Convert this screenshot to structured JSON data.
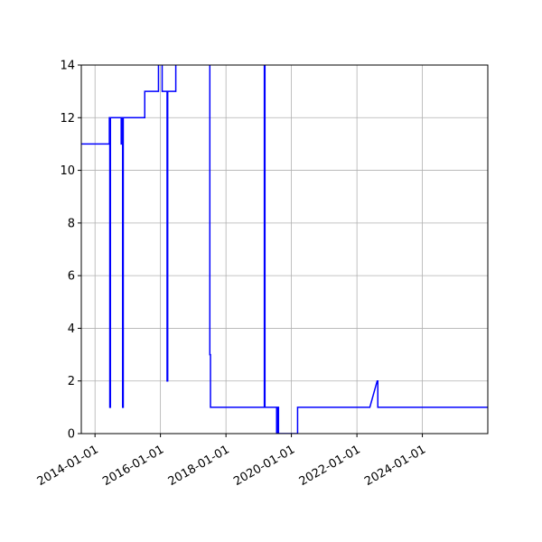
{
  "chart_data": {
    "type": "line",
    "title": "",
    "xlabel": "",
    "ylabel": "",
    "xlim": [
      "2013-08-01",
      "2025-12-31"
    ],
    "ylim": [
      0,
      14
    ],
    "grid": true,
    "x_ticks": [
      "2014-01-01",
      "2016-01-01",
      "2018-01-01",
      "2020-01-01",
      "2022-01-01",
      "2024-01-01"
    ],
    "y_ticks": [
      0,
      2,
      4,
      6,
      8,
      10,
      12,
      14
    ],
    "series": [
      {
        "color": "#0000ff",
        "points": [
          [
            "2013-08-01",
            11
          ],
          [
            "2014-06-10",
            11
          ],
          [
            "2014-06-10",
            12
          ],
          [
            "2014-06-15",
            12
          ],
          [
            "2014-06-15",
            1
          ],
          [
            "2014-06-22",
            1
          ],
          [
            "2014-06-22",
            12
          ],
          [
            "2014-10-20",
            12
          ],
          [
            "2014-10-20",
            11
          ],
          [
            "2014-10-28",
            11
          ],
          [
            "2014-10-28",
            12
          ],
          [
            "2014-11-05",
            12
          ],
          [
            "2014-11-05",
            1
          ],
          [
            "2014-11-12",
            1
          ],
          [
            "2014-11-12",
            12
          ],
          [
            "2015-07-10",
            12
          ],
          [
            "2015-07-10",
            13
          ],
          [
            "2015-12-10",
            13
          ],
          [
            "2015-12-10",
            14.5
          ],
          [
            "2016-01-20",
            14.5
          ],
          [
            "2016-01-20",
            13
          ],
          [
            "2016-03-15",
            13
          ],
          [
            "2016-03-15",
            2
          ],
          [
            "2016-03-22",
            2
          ],
          [
            "2016-03-22",
            13
          ],
          [
            "2016-06-20",
            13
          ],
          [
            "2016-06-20",
            14.5
          ],
          [
            "2017-07-05",
            14.5
          ],
          [
            "2017-07-05",
            3
          ],
          [
            "2017-07-12",
            3
          ],
          [
            "2017-07-12",
            1
          ],
          [
            "2019-03-05",
            1
          ],
          [
            "2019-03-05",
            14.5
          ],
          [
            "2019-03-12",
            14.5
          ],
          [
            "2019-03-12",
            1
          ],
          [
            "2019-07-20",
            1
          ],
          [
            "2019-07-20",
            0
          ],
          [
            "2019-08-01",
            0
          ],
          [
            "2019-08-01",
            1
          ],
          [
            "2019-08-10",
            1
          ],
          [
            "2019-08-10",
            0
          ],
          [
            "2020-03-10",
            0
          ],
          [
            "2020-03-10",
            1
          ],
          [
            "2022-05-25",
            1
          ],
          [
            "2022-08-15",
            2
          ],
          [
            "2022-08-22",
            2
          ],
          [
            "2022-08-22",
            1
          ],
          [
            "2025-12-31",
            1
          ]
        ]
      }
    ]
  }
}
